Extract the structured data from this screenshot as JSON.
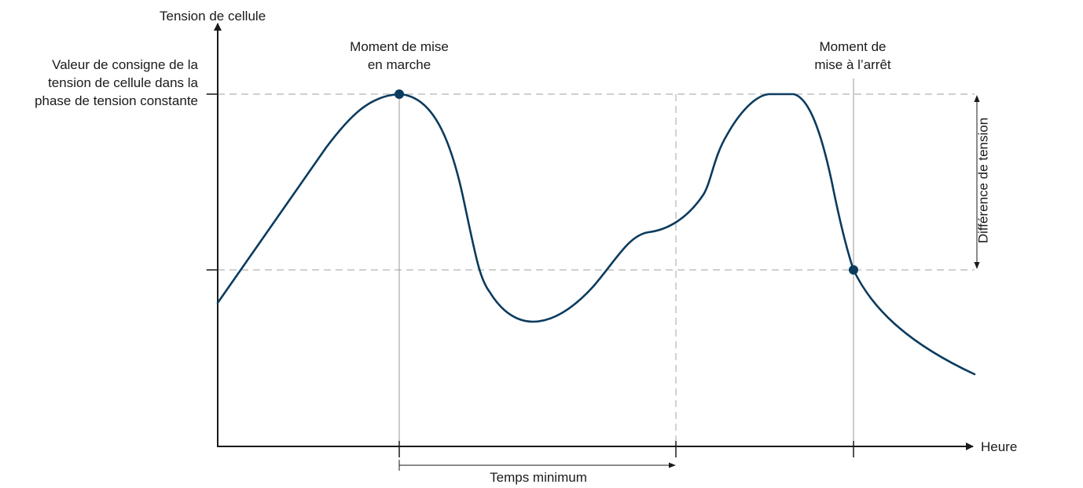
{
  "labels": {
    "y_axis": "Tension de cellule",
    "x_axis": "Heure",
    "setpoint": "Valeur de consigne de la tension de cellule dans la phase de tension constante",
    "turn_on_line1": "Moment de mise",
    "turn_on_line2": "en marche",
    "turn_off_line1": "Moment de",
    "turn_off_line2": "mise à l’arrêt",
    "min_time": "Temps minimum",
    "voltage_diff": "Différence de tension"
  },
  "colors": {
    "curve": "#0b3b5e",
    "axis": "#1a1a1a",
    "guide": "#b5b5b5"
  }
}
